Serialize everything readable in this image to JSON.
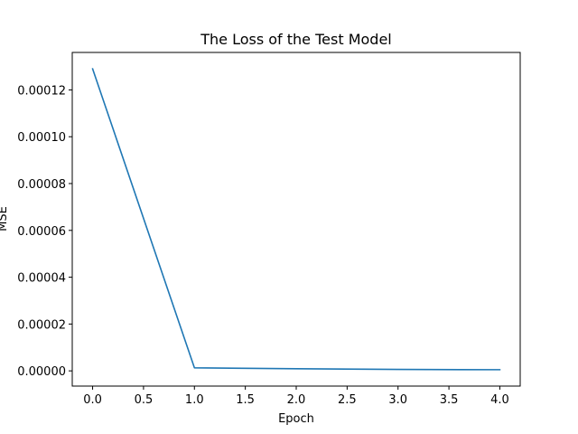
{
  "chart_data": {
    "type": "line",
    "title": "The Loss of the Test Model",
    "xlabel": "Epoch",
    "ylabel": "MSE",
    "xlim": [
      -0.2,
      4.2
    ],
    "ylim": [
      -6.5e-06,
      0.000136
    ],
    "x_ticks": [
      0.0,
      0.5,
      1.0,
      1.5,
      2.0,
      2.5,
      3.0,
      3.5,
      4.0
    ],
    "x_tick_labels": [
      "0.0",
      "0.5",
      "1.0",
      "1.5",
      "2.0",
      "2.5",
      "3.0",
      "3.5",
      "4.0"
    ],
    "y_ticks": [
      0.0,
      2e-05,
      4e-05,
      6e-05,
      8e-05,
      0.0001,
      0.00012
    ],
    "y_tick_labels": [
      "0.00000",
      "0.00002",
      "0.00004",
      "0.00006",
      "0.00008",
      "0.00010",
      "0.00012"
    ],
    "grid": false,
    "x": [
      0,
      1,
      2,
      3,
      4
    ],
    "series": [
      {
        "values": [
          0.000129,
          1.3e-06,
          9e-07,
          6e-07,
          5e-07
        ],
        "color": "#1f77b4"
      }
    ]
  }
}
